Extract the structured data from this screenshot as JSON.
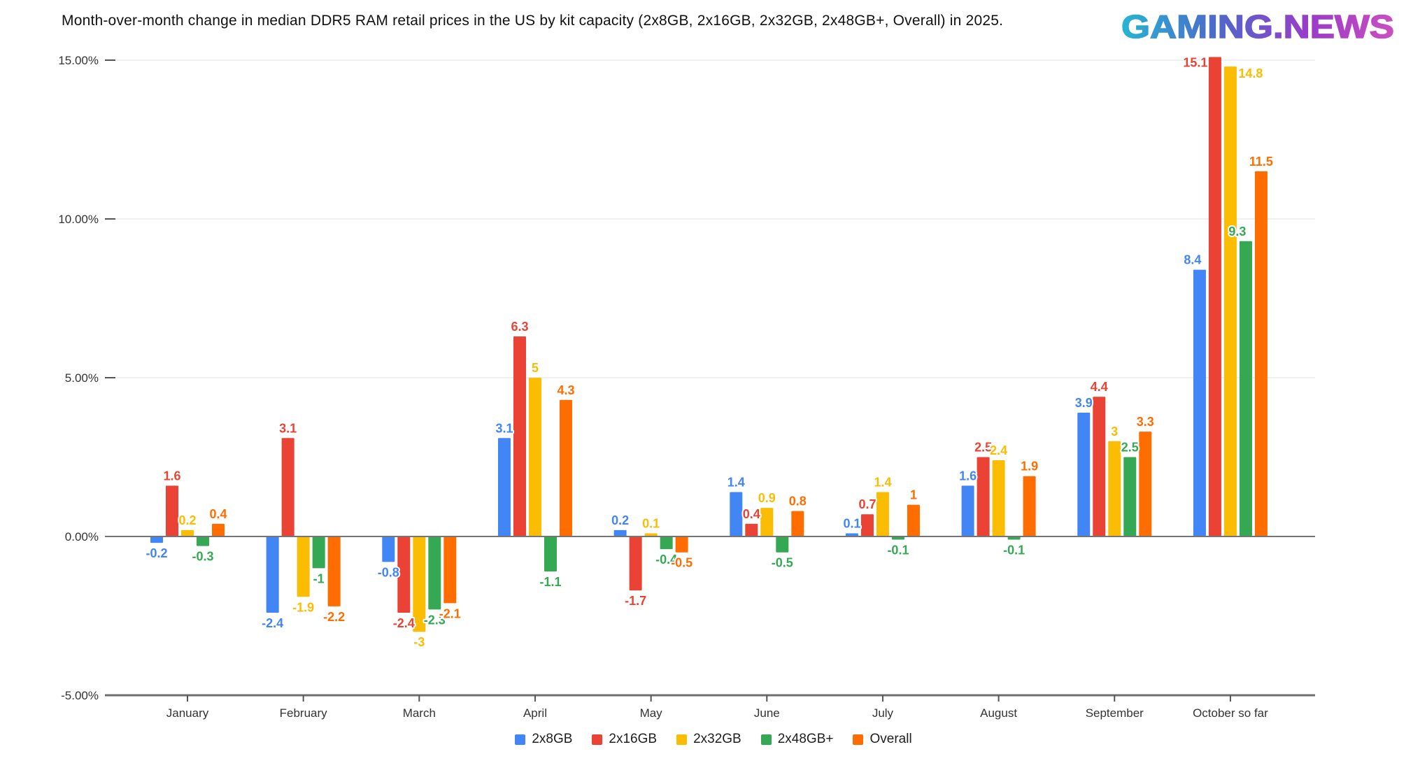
{
  "header": {
    "title": "Month-over-month change in median DDR5 RAM retail prices in the US by kit capacity (2x8GB, 2x16GB, 2x32GB, 2x48GB+, Overall) in 2025.",
    "logo_text": "GAMING.NEWS",
    "logo_gradient": [
      "#24b6d2",
      "#4e68cb",
      "#9c3bc8",
      "#ca4fc0"
    ]
  },
  "chart_data": {
    "type": "bar",
    "title": "Month-over-month change in median DDR5 RAM retail prices in the US by kit capacity (2x8GB, 2x16GB, 2x32GB, 2x48GB+, Overall) in 2025.",
    "categories": [
      "January",
      "February",
      "March",
      "April",
      "May",
      "June",
      "July",
      "August",
      "September",
      "October so far"
    ],
    "series": [
      {
        "name": "2x8GB",
        "color": "#4285F4",
        "values": [
          -0.2,
          -2.4,
          -0.8,
          3.1,
          0.2,
          1.4,
          0.1,
          1.6,
          3.9,
          8.4
        ]
      },
      {
        "name": "2x16GB",
        "color": "#EA4335",
        "values": [
          1.6,
          3.1,
          -2.4,
          6.3,
          -1.7,
          0.4,
          0.7,
          2.5,
          4.4,
          15.1
        ]
      },
      {
        "name": "2x32GB",
        "color": "#FBBC04",
        "values": [
          0.2,
          -1.9,
          -3,
          5,
          0.1,
          0.9,
          1.4,
          2.4,
          3,
          14.8
        ]
      },
      {
        "name": "2x48GB+",
        "color": "#34A853",
        "values": [
          -0.3,
          -1,
          -2.3,
          -1.1,
          -0.4,
          -0.5,
          -0.1,
          -0.1,
          2.5,
          9.3
        ]
      },
      {
        "name": "Overall",
        "color": "#FF6D00",
        "values": [
          0.4,
          -2.2,
          -2.1,
          4.3,
          -0.5,
          0.8,
          1,
          1.9,
          3.3,
          11.5
        ]
      }
    ],
    "xlabel": "",
    "ylabel": "",
    "y_ticks": [
      "15.00%",
      "10.00%",
      "5.00%",
      "0.00%",
      "-5.00%"
    ],
    "y_tick_values": [
      15,
      10,
      5,
      0,
      -5
    ],
    "ylim": [
      -5,
      15
    ],
    "grid": true,
    "value_labels": true,
    "legend_position": "bottom"
  }
}
